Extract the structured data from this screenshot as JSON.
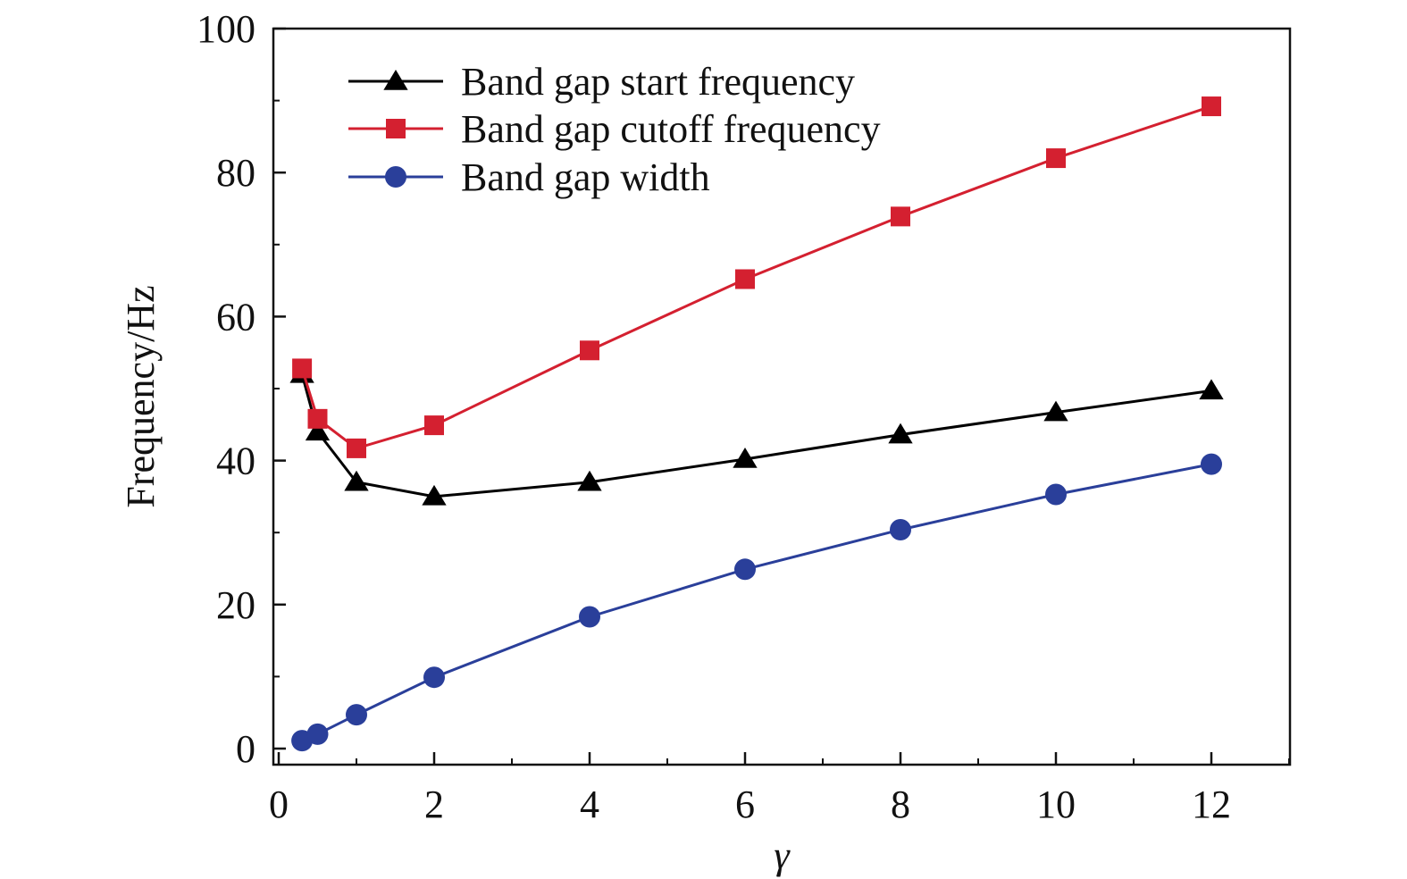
{
  "chart_data": {
    "type": "line",
    "title": "",
    "xlabel": "γ",
    "ylabel": "Frequency/Hz",
    "xlim": [
      0,
      13
    ],
    "ylim": [
      0,
      100
    ],
    "xticks": [
      0,
      2,
      4,
      6,
      8,
      10,
      12
    ],
    "yticks": [
      0,
      20,
      40,
      60,
      80,
      100
    ],
    "x": [
      0.3,
      0.5,
      1,
      2,
      4,
      6,
      8,
      10,
      12
    ],
    "grid": false,
    "legend_position": "top-left",
    "series": [
      {
        "name": "Band gap start frequency",
        "color": "#000000",
        "marker": "triangle",
        "values": [
          52,
          44,
          37,
          35,
          37,
          40.2,
          43.6,
          46.7,
          49.7
        ]
      },
      {
        "name": "Band gap cutoff frequency",
        "color": "#d42030",
        "marker": "square",
        "values": [
          52.8,
          45.8,
          41.7,
          44.9,
          55.3,
          65.2,
          73.9,
          82,
          89.2
        ]
      },
      {
        "name": "Band gap width",
        "color": "#2a3f9a",
        "marker": "circle",
        "values": [
          1.1,
          2,
          4.7,
          9.9,
          18.3,
          24.9,
          30.4,
          35.3,
          39.5
        ]
      }
    ]
  }
}
